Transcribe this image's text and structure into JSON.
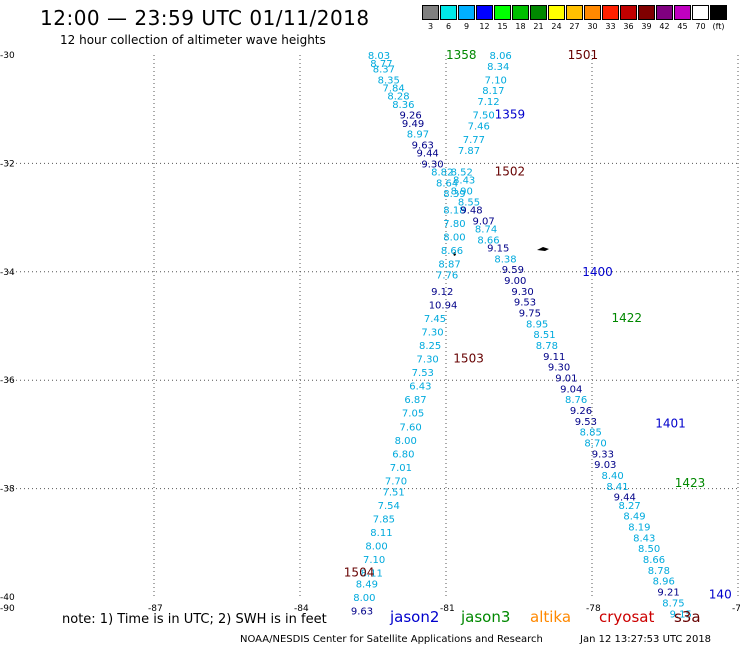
{
  "header": {
    "title": "12:00 — 23:59 UTC 01/11/2018",
    "subtitle": "12 hour collection of altimeter wave heights"
  },
  "scale": {
    "labels": [
      "3",
      "6",
      "9",
      "12",
      "15",
      "18",
      "21",
      "24",
      "27",
      "30",
      "33",
      "36",
      "39",
      "42",
      "45",
      "70",
      "(ft)"
    ],
    "colors": [
      "#808080",
      "#00e8e8",
      "#00b0ff",
      "#0000ff",
      "#00ff00",
      "#00c000",
      "#008800",
      "#ffff00",
      "#ffc000",
      "#ff8800",
      "#ff2000",
      "#c00000",
      "#800000",
      "#800080",
      "#c000c0",
      "#ffffff",
      "#000000"
    ]
  },
  "axes": {
    "lat_labels": [
      "-30",
      "-32",
      "-34",
      "-36",
      "-38",
      "-40"
    ],
    "lon_labels": [
      "-90",
      "-87",
      "-84",
      "-81",
      "-78",
      "-75"
    ],
    "lat_values": [
      -30,
      -32,
      -34,
      -36,
      -38,
      -40
    ],
    "lon_values": [
      -90,
      -87,
      -84,
      -81,
      -78,
      -75
    ]
  },
  "colors": {
    "jason2": "#0000cc",
    "jason3": "#008800",
    "altika": "#ff8800",
    "cryosat": "#cc0000",
    "s3a": "#660000",
    "light": "#00aadd",
    "dark": "#000088"
  },
  "tracks": {
    "west": {
      "points": [
        [
          "8.03",
          -30.0,
          -82.4,
          "light"
        ],
        [
          "8.77",
          -30.15,
          -82.35,
          "light"
        ],
        [
          "8.37",
          -30.25,
          -82.3,
          "light"
        ],
        [
          "8.35",
          -30.45,
          -82.2,
          "light"
        ],
        [
          "7.84",
          -30.6,
          -82.1,
          "light"
        ],
        [
          "8.28",
          -30.75,
          -82.0,
          "light"
        ],
        [
          "8.36",
          -30.9,
          -81.9,
          "light"
        ],
        [
          "9.26",
          -31.1,
          -81.75,
          "dark"
        ],
        [
          "9.49",
          -31.25,
          -81.7,
          "dark"
        ],
        [
          "8.97",
          -31.45,
          -81.6,
          "light"
        ],
        [
          "9.63",
          -31.65,
          -81.5,
          "dark"
        ],
        [
          "9.44",
          -31.8,
          -81.4,
          "dark"
        ],
        [
          "9.30",
          -32.0,
          -81.3,
          "dark"
        ],
        [
          "8.82",
          -32.15,
          -81.1,
          "light"
        ],
        [
          "8.64",
          -32.35,
          -81.0,
          "light"
        ],
        [
          "8.39",
          -32.55,
          -80.85,
          "light"
        ],
        [
          "8.18",
          -32.85,
          -80.85,
          "light"
        ],
        [
          "7.80",
          -33.1,
          -80.85,
          "light"
        ],
        [
          "8.00",
          -33.35,
          -80.85,
          "light"
        ],
        [
          "8.66",
          -33.6,
          -80.9,
          "light"
        ],
        [
          "8.87",
          -33.85,
          -80.95,
          "light"
        ],
        [
          "7.76",
          -34.05,
          -81.0,
          "light"
        ],
        [
          "9.12",
          -34.35,
          -81.1,
          "dark"
        ],
        [
          "10.94",
          -34.6,
          -81.15,
          "dark"
        ],
        [
          "7.45",
          -34.85,
          -81.25,
          "light"
        ],
        [
          "7.30",
          -35.1,
          -81.3,
          "light"
        ],
        [
          "8.25",
          -35.35,
          -81.35,
          "light"
        ],
        [
          "7.30",
          -35.6,
          -81.4,
          "light"
        ],
        [
          "7.53",
          -35.85,
          -81.5,
          "light"
        ],
        [
          "6.43",
          -36.1,
          -81.55,
          "light"
        ],
        [
          "6.87",
          -36.35,
          -81.65,
          "light"
        ],
        [
          "7.05",
          -36.6,
          -81.7,
          "light"
        ],
        [
          "7.60",
          -36.85,
          -81.75,
          "light"
        ],
        [
          "8.00",
          -37.1,
          -81.85,
          "light"
        ],
        [
          "6.80",
          -37.35,
          -81.9,
          "light"
        ],
        [
          "7.01",
          -37.6,
          -81.95,
          "light"
        ],
        [
          "7.70",
          -37.85,
          -82.05,
          "light"
        ],
        [
          "7.51",
          -38.05,
          -82.1,
          "light"
        ],
        [
          "7.54",
          -38.3,
          -82.2,
          "light"
        ],
        [
          "7.85",
          -38.55,
          -82.3,
          "light"
        ],
        [
          "8.11",
          -38.8,
          -82.35,
          "light"
        ],
        [
          "8.00",
          -39.05,
          -82.45,
          "light"
        ],
        [
          "7.10",
          -39.3,
          -82.5,
          "light"
        ],
        [
          "8.11",
          -39.55,
          -82.55,
          "light"
        ],
        [
          "8.49",
          -39.75,
          -82.65,
          "light"
        ],
        [
          "8.00",
          -40.0,
          -82.7,
          "light"
        ],
        [
          "9.63",
          -40.25,
          -82.75,
          "dark"
        ]
      ]
    },
    "east": {
      "points": [
        [
          "8.06",
          -30.0,
          -79.9,
          "light"
        ],
        [
          "8.34",
          -30.2,
          -79.95,
          "light"
        ],
        [
          "7.10",
          -30.45,
          -80.0,
          "light"
        ],
        [
          "8.17",
          -30.65,
          -80.05,
          "light"
        ],
        [
          "7.12",
          -30.85,
          -80.15,
          "light"
        ],
        [
          "7.50",
          -31.1,
          -80.25,
          "light"
        ],
        [
          "7.46",
          -31.3,
          -80.35,
          "light"
        ],
        [
          "7.77",
          -31.55,
          -80.45,
          "light"
        ],
        [
          "7.87",
          -31.75,
          -80.55,
          "light"
        ],
        [
          "8.52",
          -32.15,
          -80.7,
          "light"
        ],
        [
          "8.43",
          -32.3,
          -80.65,
          "light"
        ],
        [
          "8.90",
          -32.5,
          -80.7,
          "light"
        ],
        [
          "8.55",
          -32.7,
          -80.55,
          "light"
        ],
        [
          "9.48",
          -32.85,
          -80.5,
          "dark"
        ],
        [
          "9.07",
          -33.05,
          -80.25,
          "dark"
        ],
        [
          "8.74",
          -33.2,
          -80.2,
          "light"
        ],
        [
          "8.66",
          -33.4,
          -80.15,
          "light"
        ],
        [
          "9.15",
          -33.55,
          -79.95,
          "dark"
        ],
        [
          "8.38",
          -33.75,
          -79.8,
          "light"
        ],
        [
          "9.59",
          -33.95,
          -79.65,
          "dark"
        ],
        [
          "9.00",
          -34.15,
          -79.6,
          "dark"
        ],
        [
          "9.30",
          -34.35,
          -79.45,
          "dark"
        ],
        [
          "9.53",
          -34.55,
          -79.4,
          "dark"
        ],
        [
          "9.75",
          -34.75,
          -79.3,
          "dark"
        ],
        [
          "8.95",
          -34.95,
          -79.15,
          "light"
        ],
        [
          "8.51",
          -35.15,
          -79.0,
          "light"
        ],
        [
          "8.78",
          -35.35,
          -78.95,
          "light"
        ],
        [
          "9.11",
          -35.55,
          -78.8,
          "dark"
        ],
        [
          "9.30",
          -35.75,
          -78.7,
          "dark"
        ],
        [
          "9.01",
          -35.95,
          -78.55,
          "dark"
        ],
        [
          "9.04",
          -36.15,
          -78.45,
          "dark"
        ],
        [
          "8.76",
          -36.35,
          -78.35,
          "light"
        ],
        [
          "9.26",
          -36.55,
          -78.25,
          "dark"
        ],
        [
          "9.53",
          -36.75,
          -78.15,
          "dark"
        ],
        [
          "8.85",
          -36.95,
          -78.05,
          "light"
        ],
        [
          "8.70",
          -37.15,
          -77.95,
          "light"
        ],
        [
          "9.33",
          -37.35,
          -77.8,
          "dark"
        ],
        [
          "9.03",
          -37.55,
          -77.75,
          "dark"
        ],
        [
          "8.40",
          -37.75,
          -77.6,
          "light"
        ],
        [
          "8.41",
          -37.95,
          -77.5,
          "light"
        ],
        [
          "9.44",
          -38.15,
          -77.35,
          "dark"
        ],
        [
          "8.27",
          -38.3,
          -77.25,
          "light"
        ],
        [
          "8.49",
          -38.5,
          -77.15,
          "light"
        ],
        [
          "8.19",
          -38.7,
          -77.05,
          "light"
        ],
        [
          "8.43",
          -38.9,
          -76.95,
          "light"
        ],
        [
          "8.50",
          -39.1,
          -76.85,
          "light"
        ],
        [
          "8.66",
          -39.3,
          -76.75,
          "light"
        ],
        [
          "8.78",
          -39.5,
          -76.65,
          "light"
        ],
        [
          "8.96",
          -39.7,
          -76.55,
          "light"
        ],
        [
          "9.21",
          -39.9,
          -76.45,
          "dark"
        ],
        [
          "8.75",
          -40.1,
          -76.35,
          "light"
        ],
        [
          "9.15",
          -40.3,
          -76.2,
          "light"
        ]
      ]
    }
  },
  "pass_times": [
    {
      "label": "1358",
      "lat": -30.0,
      "lon": -81.0,
      "sat": "jason3"
    },
    {
      "label": "1501",
      "lat": -30.0,
      "lon": -78.5,
      "sat": "s3a"
    },
    {
      "label": "1359",
      "lat": -31.1,
      "lon": -80.0,
      "sat": "jason2"
    },
    {
      "label": "1502",
      "lat": -32.15,
      "lon": -80.0,
      "sat": "s3a"
    },
    {
      "label": "1400",
      "lat": -34.0,
      "lon": -78.2,
      "sat": "jason2"
    },
    {
      "label": "1422",
      "lat": -34.85,
      "lon": -77.6,
      "sat": "jason3"
    },
    {
      "label": "1503",
      "lat": -35.6,
      "lon": -80.85,
      "sat": "s3a"
    },
    {
      "label": "1401",
      "lat": -36.8,
      "lon": -76.7,
      "sat": "jason2"
    },
    {
      "label": "1423",
      "lat": -37.9,
      "lon": -76.3,
      "sat": "jason3"
    },
    {
      "label": "1504",
      "lat": -39.55,
      "lon": -83.1,
      "sat": "s3a"
    },
    {
      "label": "140",
      "lat": -39.95,
      "lon": -75.6,
      "sat": "jason2"
    }
  ],
  "note": "note:  1) Time is in UTC;  2) SWH is in feet",
  "legend": [
    {
      "label": "jason2",
      "color": "#0000cc"
    },
    {
      "label": "jason3",
      "color": "#008800"
    },
    {
      "label": "altika",
      "color": "#ff8800"
    },
    {
      "label": "cryosat",
      "color": "#cc0000"
    },
    {
      "label": "s3a",
      "color": "#660000"
    }
  ],
  "credit": "NOAA/NESDIS Center for Satellite Applications and Research",
  "stamp": "Jan 12 13:27:53 UTC 2018"
}
